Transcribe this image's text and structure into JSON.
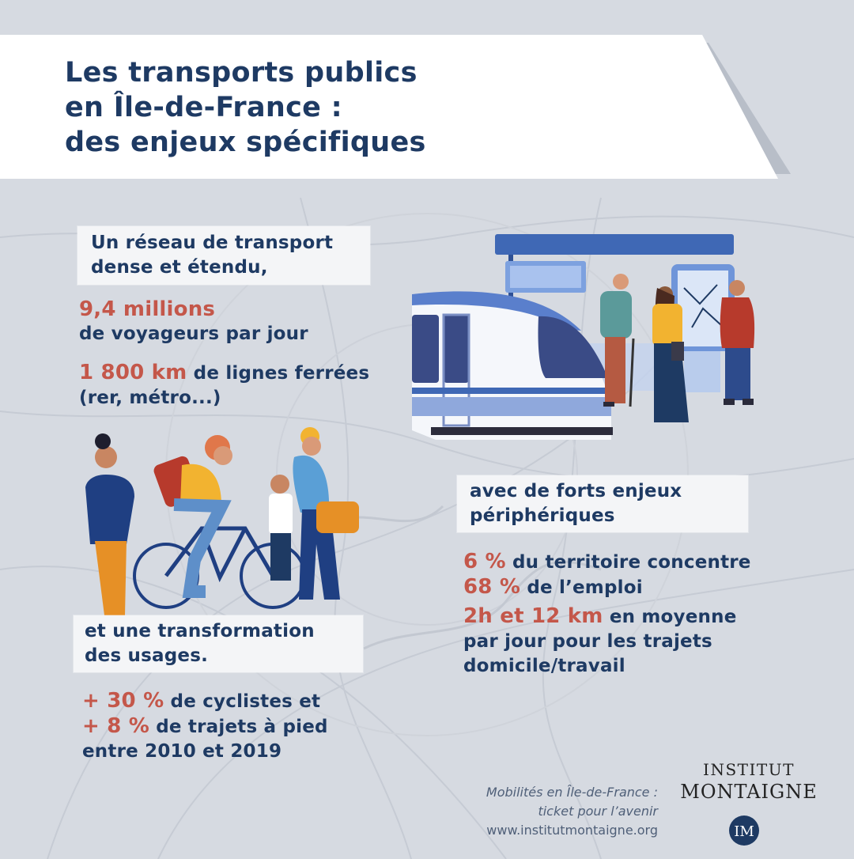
{
  "header": {
    "title_lines": [
      "Les transports publics",
      "en Île-de-France :",
      "des enjeux spécifiques"
    ]
  },
  "section_network": {
    "heading_lines": [
      "Un réseau de transport",
      "dense et étendu,"
    ],
    "stat1": {
      "value": "9,4 millions",
      "text": "de voyageurs par jour"
    },
    "stat2": {
      "value": "1 800 km",
      "text": "de lignes ferrées",
      "text2": "(rer, métro...)"
    }
  },
  "section_periphery": {
    "heading_lines": [
      "avec de forts enjeux",
      "périphériques"
    ],
    "stat1": {
      "value": "6 %",
      "text": "du territoire concentre",
      "value2": "68 %",
      "text2": "de l’emploi"
    },
    "stat2": {
      "value": "2h et 12 km",
      "text": "en moyenne",
      "text2": "par jour pour les trajets",
      "text3": "domicile/travail"
    }
  },
  "section_usages": {
    "heading_lines": [
      "et une transformation",
      "des usages."
    ],
    "stat1": {
      "value": "+ 30 %",
      "text": "de cyclistes et"
    },
    "stat2": {
      "value": "+ 8 %",
      "text": "de trajets à pied"
    },
    "stat3": {
      "text": "entre 2010 et 2019"
    }
  },
  "source": {
    "line1": "Mobilités en Île-de-France :",
    "line2": "ticket pour l’avenir",
    "url": "www.institutmontaigne.org"
  },
  "brand": {
    "line1": "INSTITUT",
    "line2": "MONTAIGNE",
    "logo_letters": "IM"
  },
  "colors": {
    "navy": "#1e3a63",
    "accent_red": "#c4574a",
    "background": "#d6dae1",
    "box": "#f4f5f7"
  },
  "icons": [
    "tram-station-illustration",
    "cyclist-family-illustration",
    "montaigne-logo-icon"
  ]
}
